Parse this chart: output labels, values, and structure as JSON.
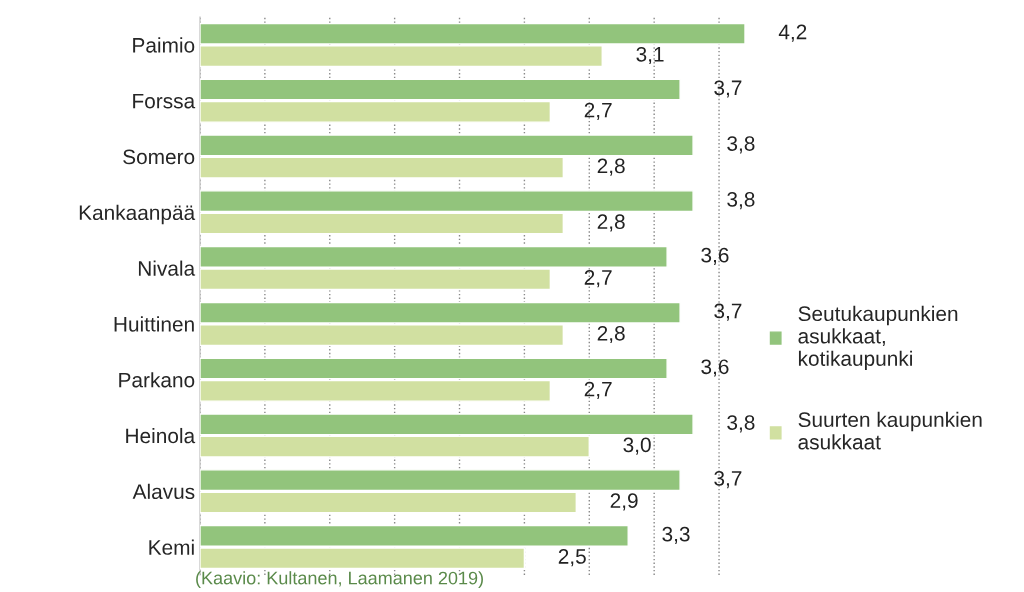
{
  "chart_data": {
    "type": "bar",
    "orientation": "horizontal",
    "categories": [
      "Paimio",
      "Forssa",
      "Somero",
      "Kankaanpää",
      "Nivala",
      "Huittinen",
      "Parkano",
      "Heinola",
      "Alavus",
      "Kemi"
    ],
    "series": [
      {
        "name": "Seutukaupunkien\nasukkaat,\nkotikaupunki",
        "color": "#92c47c",
        "values": [
          4.2,
          3.7,
          3.8,
          3.8,
          3.6,
          3.7,
          3.6,
          3.8,
          3.7,
          3.3
        ],
        "value_labels": [
          "4,2",
          "3,7",
          "3,8",
          "3,8",
          "3,6",
          "3,7",
          "3,6",
          "3,8",
          "3,7",
          "3,3"
        ]
      },
      {
        "name": "Suurten kaupunkien\nasukkaat",
        "color": "#d1e0a1",
        "values": [
          3.1,
          2.7,
          2.8,
          2.8,
          2.7,
          2.8,
          2.7,
          3.0,
          2.9,
          2.5
        ],
        "value_labels": [
          "3,1",
          "2,7",
          "2,8",
          "2,8",
          "2,7",
          "2,8",
          "2,7",
          "3,0",
          "2,9",
          "2,5"
        ]
      }
    ],
    "grid": "x",
    "legend": "right",
    "tick_labels": "y",
    "annotations": [
      "(Kaavio: Kultanen, Laamanen 2019)"
    ]
  }
}
